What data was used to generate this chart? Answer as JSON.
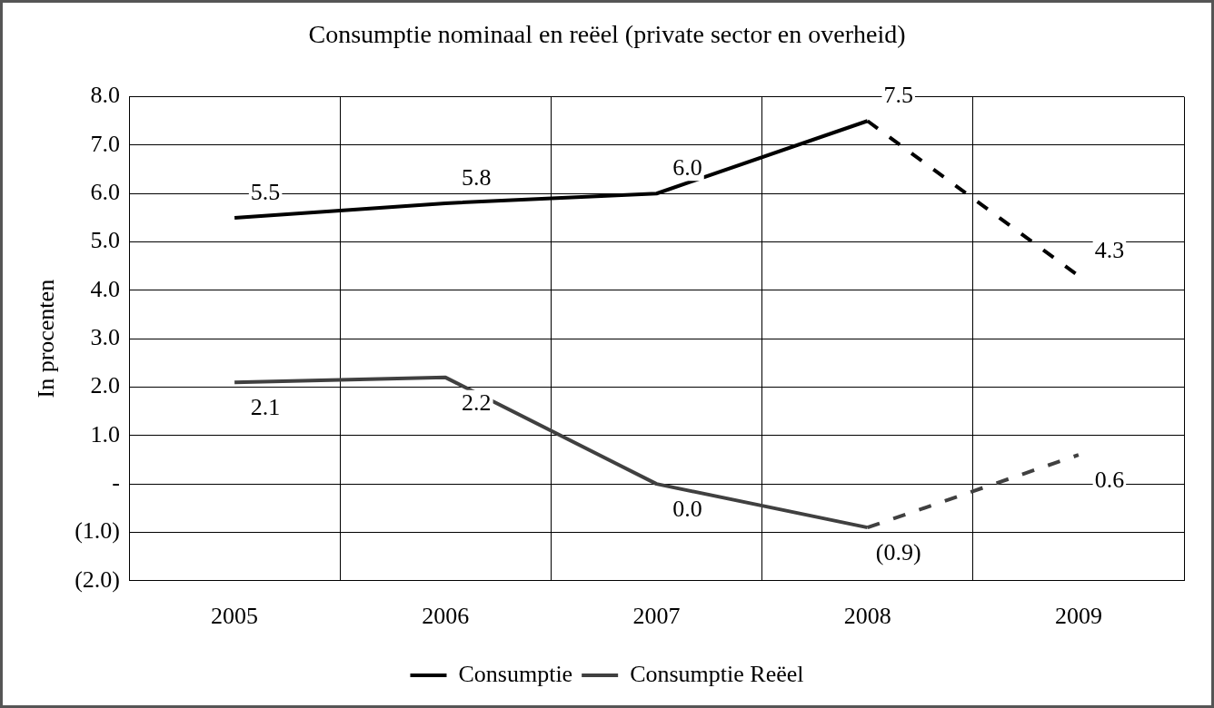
{
  "chart_data": {
    "type": "line",
    "title": "Consumptie nominaal en reëel (private sector en overheid)",
    "ylabel": "In procenten",
    "categories": [
      "2005",
      "2006",
      "2007",
      "2008",
      "2009"
    ],
    "series": [
      {
        "name": "Consumptie",
        "color": "#000000",
        "line_style": "solid",
        "values": [
          5.5,
          5.8,
          6.0,
          7.5,
          null
        ],
        "value_labels": [
          "5.5",
          "5.8",
          "6.0",
          "7.5",
          null
        ]
      },
      {
        "name": "Consumptie Reëel",
        "color": "#404040",
        "line_style": "solid",
        "values": [
          2.1,
          2.2,
          0.0,
          -0.9,
          null
        ],
        "value_labels": [
          "2.1",
          "2.2",
          "0.0",
          "(0.9)",
          null
        ]
      },
      {
        "color": "#000000",
        "line_style": "dashed",
        "values": [
          null,
          null,
          null,
          7.5,
          4.3
        ],
        "value_labels": [
          null,
          null,
          null,
          null,
          "4.3"
        ]
      },
      {
        "color": "#404040",
        "line_style": "dashed",
        "values": [
          null,
          null,
          null,
          -0.9,
          0.6
        ],
        "value_labels": [
          null,
          null,
          null,
          null,
          "0.6"
        ]
      }
    ],
    "ylim": [
      -2,
      8
    ],
    "yticks": [
      {
        "value": -2,
        "label": "(2.0)"
      },
      {
        "value": -1,
        "label": "(1.0)"
      },
      {
        "value": 0,
        "label": "-"
      },
      {
        "value": 1,
        "label": "1.0"
      },
      {
        "value": 2,
        "label": "2.0"
      },
      {
        "value": 3,
        "label": "3.0"
      },
      {
        "value": 4,
        "label": "4.0"
      },
      {
        "value": 5,
        "label": "5.0"
      },
      {
        "value": 6,
        "label": "6.0"
      },
      {
        "value": 7,
        "label": "7.0"
      },
      {
        "value": 8,
        "label": "8.0"
      }
    ],
    "grid": true,
    "legend": "bottom",
    "marker": "none"
  }
}
